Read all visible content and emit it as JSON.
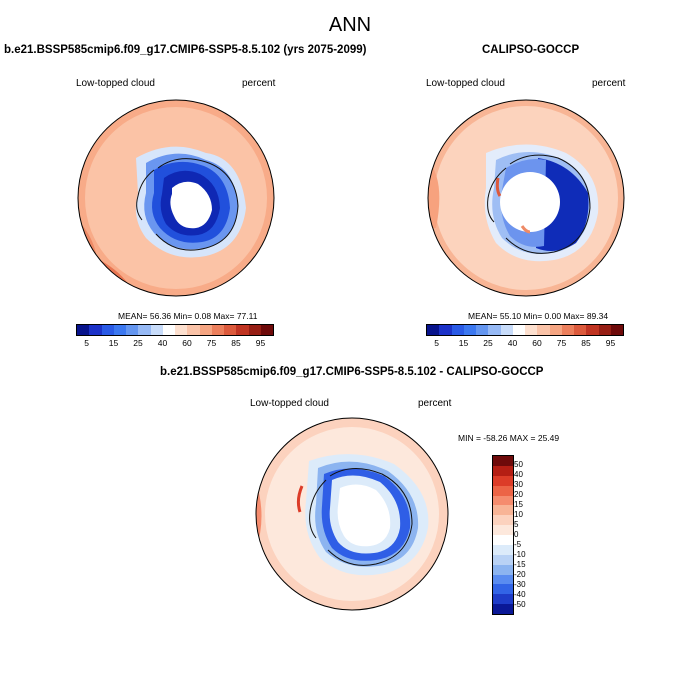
{
  "main_title": "ANN",
  "panels": {
    "model": {
      "title": "b.e21.BSSP585cmip6.f09_g17.CMIP6-SSP5-8.5.102 (yrs 2075-2099)",
      "left_label": "Low-topped cloud",
      "right_label": "percent",
      "stats": "MEAN=  56.36  Min=   0.08  Max=  77.11"
    },
    "obs": {
      "title": "CALIPSO-GOCCP",
      "left_label": "Low-topped cloud",
      "right_label": "percent",
      "stats": "MEAN=  55.10  Min=   0.00  Max=  89.34"
    },
    "diff": {
      "title": "b.e21.BSSP585cmip6.f09_g17.CMIP6-SSP5-8.5.102 - CALIPSO-GOCCP",
      "left_label": "Low-topped cloud",
      "right_label": "percent",
      "stats": "MIN = -58.26 MAX =  25.49"
    }
  },
  "colorbar_abs": {
    "colors": [
      "#08148c",
      "#1c32c8",
      "#2a5ae6",
      "#3c78f0",
      "#6496f0",
      "#96b9f5",
      "#c8dcfa",
      "#ffffff",
      "#fde0cf",
      "#fac3a8",
      "#f5a582",
      "#ec7f5c",
      "#dc5a3c",
      "#c03422",
      "#961e14",
      "#6e0a0a"
    ],
    "labels": [
      "5",
      "15",
      "25",
      "40",
      "60",
      "75",
      "85",
      "95"
    ]
  },
  "colorbar_diff": {
    "colors": [
      "#6e0a0a",
      "#b41e14",
      "#dc3c28",
      "#ec6446",
      "#f58c6e",
      "#f8b496",
      "#fcd2be",
      "#fde8dc",
      "#ffffff",
      "#dcebfa",
      "#b9d2f5",
      "#8cb4f0",
      "#5a8cf0",
      "#3264e6",
      "#1e3cc8",
      "#0a1896"
    ],
    "labels": [
      "50",
      "40",
      "30",
      "20",
      "15",
      "10",
      "5",
      "0",
      "-5",
      "-10",
      "-15",
      "-20",
      "-30",
      "-40",
      "-50"
    ]
  }
}
